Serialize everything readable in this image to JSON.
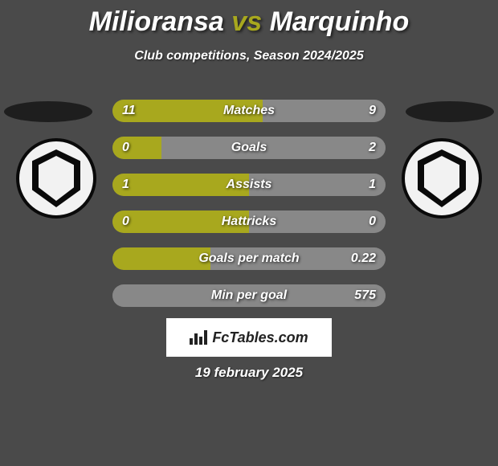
{
  "title": {
    "player1": "Milioransa",
    "vs": "vs",
    "player2": "Marquinho"
  },
  "subtitle": "Club competitions, Season 2024/2025",
  "colors": {
    "player1_accent": "#a8a81e",
    "player2_accent": "#888888",
    "bar_track": "#5a5a5a",
    "background": "#4a4a4a"
  },
  "stats": [
    {
      "label": "Matches",
      "left_val": "11",
      "right_val": "9",
      "left_pct": 55,
      "right_pct": 45
    },
    {
      "label": "Goals",
      "left_val": "0",
      "right_val": "2",
      "left_pct": 18,
      "right_pct": 82
    },
    {
      "label": "Assists",
      "left_val": "1",
      "right_val": "1",
      "left_pct": 50,
      "right_pct": 50
    },
    {
      "label": "Hattricks",
      "left_val": "0",
      "right_val": "0",
      "left_pct": 50,
      "right_pct": 50
    },
    {
      "label": "Goals per match",
      "left_val": "",
      "right_val": "0.22",
      "left_pct": 36,
      "right_pct": 64
    },
    {
      "label": "Min per goal",
      "left_val": "",
      "right_val": "575",
      "left_pct": 0,
      "right_pct": 100
    }
  ],
  "footer_brand": "FcTables.com",
  "date": "19 february 2025"
}
